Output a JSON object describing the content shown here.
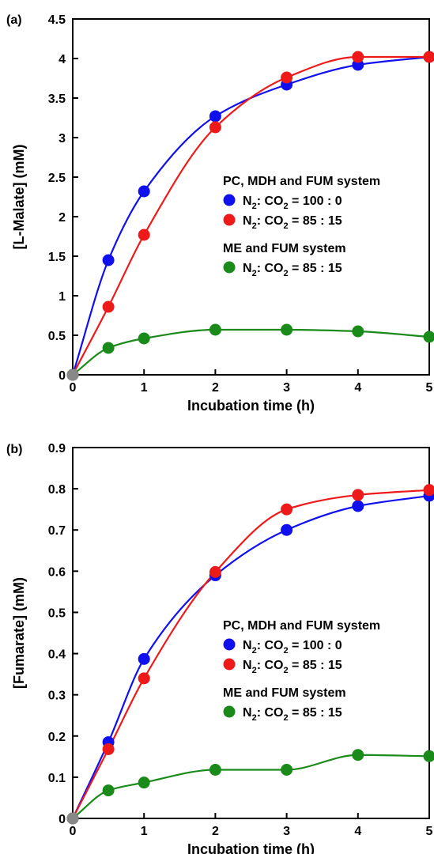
{
  "chart_data": [
    {
      "panel_label": "(a)",
      "type": "line",
      "xlabel": "Incubation time (h)",
      "ylabel": "[L-Malate] (mM)",
      "xlim": [
        0,
        5
      ],
      "ylim": [
        0,
        4.5
      ],
      "xticks": [
        "0",
        "1",
        "2",
        "3",
        "4",
        "5"
      ],
      "yticks": [
        "0",
        "0.5",
        "1",
        "1.5",
        "2",
        "2.5",
        "3",
        "3.5",
        "4",
        "4.5"
      ],
      "grid": false,
      "legend_position": "center-right",
      "legend_groups": [
        {
          "heading": "PC, MDH and FUM system",
          "entries": [
            {
              "label_prefix": "N",
              "sub1": "2",
              "label_mid": ": CO",
              "sub2": "2",
              "label_suffix": " = 100 : 0",
              "color": "#1010ee"
            },
            {
              "label_prefix": "N",
              "sub1": "2",
              "label_mid": ": CO",
              "sub2": "2",
              "label_suffix": " = 85 : 15",
              "color": "#ee1a1a"
            }
          ]
        },
        {
          "heading": "ME and FUM system",
          "entries": [
            {
              "label_prefix": "N",
              "sub1": "2",
              "label_mid": ": CO",
              "sub2": "2",
              "label_suffix": " = 85 : 15",
              "color": "#1a8a1a"
            }
          ]
        }
      ],
      "x": [
        0,
        0.5,
        1,
        2,
        3,
        4,
        5
      ],
      "series": [
        {
          "color": "#1010ee",
          "values": [
            0,
            1.45,
            2.32,
            3.27,
            3.67,
            3.92,
            4.02
          ]
        },
        {
          "color": "#ee1a1a",
          "values": [
            0,
            0.86,
            1.77,
            3.13,
            3.76,
            4.02,
            4.02
          ]
        },
        {
          "color": "#1a8a1a",
          "values": [
            0,
            0.34,
            0.46,
            0.57,
            0.57,
            0.55,
            0.48
          ]
        }
      ]
    },
    {
      "panel_label": "(b)",
      "type": "line",
      "xlabel": "Incubation time (h)",
      "ylabel": "[Fumarate] (mM)",
      "xlim": [
        0,
        5
      ],
      "ylim": [
        0,
        0.9
      ],
      "xticks": [
        "0",
        "1",
        "2",
        "3",
        "4",
        "5"
      ],
      "yticks": [
        "0",
        "0.1",
        "0.2",
        "0.3",
        "0.4",
        "0.5",
        "0.6",
        "0.7",
        "0.8",
        "0.9"
      ],
      "grid": false,
      "legend_position": "center-right",
      "legend_groups": [
        {
          "heading": "PC, MDH and FUM system",
          "entries": [
            {
              "label_prefix": "N",
              "sub1": "2",
              "label_mid": ": CO",
              "sub2": "2",
              "label_suffix": " = 100 : 0",
              "color": "#1010ee"
            },
            {
              "label_prefix": "N",
              "sub1": "2",
              "label_mid": ": CO",
              "sub2": "2",
              "label_suffix": " = 85 : 15",
              "color": "#ee1a1a"
            }
          ]
        },
        {
          "heading": "ME and FUM system",
          "entries": [
            {
              "label_prefix": "N",
              "sub1": "2",
              "label_mid": ": CO",
              "sub2": "2",
              "label_suffix": " = 85 : 15",
              "color": "#1a8a1a"
            }
          ]
        }
      ],
      "x": [
        0,
        0.5,
        1,
        2,
        3,
        4,
        5
      ],
      "series": [
        {
          "color": "#1010ee",
          "values": [
            0,
            0.185,
            0.387,
            0.59,
            0.7,
            0.758,
            0.783
          ]
        },
        {
          "color": "#ee1a1a",
          "values": [
            0,
            0.168,
            0.34,
            0.598,
            0.75,
            0.785,
            0.797
          ]
        },
        {
          "color": "#1a8a1a",
          "values": [
            0,
            0.068,
            0.087,
            0.118,
            0.118,
            0.154,
            0.151
          ]
        }
      ]
    }
  ]
}
